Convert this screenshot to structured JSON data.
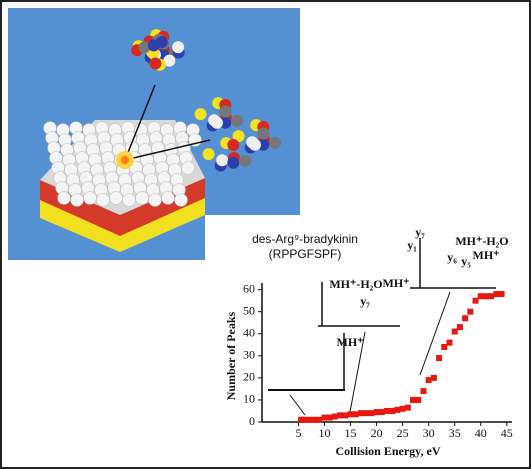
{
  "chart_data": {
    "type": "scatter",
    "x_label": "Collision Energy, eV",
    "y_label": "Number of Peaks",
    "annotations": [
      "des-Arg⁹-bradykinin",
      "(RPPGFSPF)"
    ],
    "spectrum_labels": [
      "MH⁺",
      "MH⁺-H₂O",
      "MH⁺",
      "y₇",
      "y₇",
      "y₁",
      "y₆",
      "y₅",
      "MH⁺-H₂O",
      "MH⁺"
    ],
    "color": "#e8170f",
    "x": [
      5.5,
      6,
      7,
      8,
      9,
      10,
      11,
      12,
      13,
      14,
      15,
      16,
      17,
      18,
      19,
      20,
      21,
      22,
      23,
      24,
      25,
      26,
      27,
      28,
      29,
      30,
      31,
      32,
      33,
      34,
      35,
      36,
      37,
      38,
      39,
      40,
      41,
      42,
      43,
      44
    ],
    "values": [
      1,
      1,
      1,
      1,
      1,
      2,
      2,
      2.5,
      3,
      3,
      3.5,
      3.5,
      4,
      4,
      4,
      4.5,
      4.5,
      5,
      5,
      5.5,
      6,
      6.5,
      10,
      10,
      14,
      19,
      20,
      29,
      34,
      36,
      41,
      43,
      47,
      50,
      55,
      57,
      57,
      57,
      58,
      58
    ],
    "xlim": [
      -2,
      46
    ],
    "ylim": [
      0,
      63
    ],
    "xticks": [
      5,
      10,
      15,
      20,
      25,
      30,
      35,
      40,
      45
    ],
    "yticks": [
      0,
      10,
      20,
      30,
      40,
      50,
      60
    ],
    "grid": false
  }
}
